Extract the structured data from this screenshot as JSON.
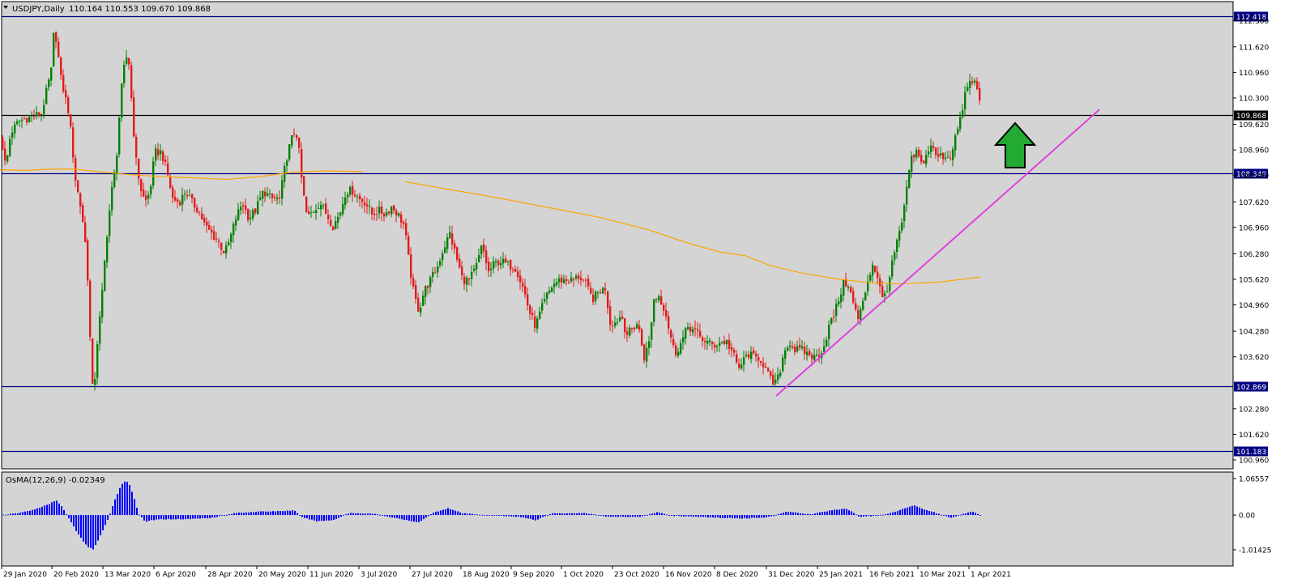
{
  "header": {
    "symbol": "USDJPY,Daily",
    "ohlc": "110.164 110.553 109.670 109.868"
  },
  "indicator": {
    "label": "OsMA(12,26,9) -0.02349",
    "value": -0.02349,
    "ticks": [
      "1.06557",
      "0.00",
      "-1.01425"
    ],
    "tick_values": [
      1.06557,
      0,
      -1.01425
    ]
  },
  "colors": {
    "background": "#d4d4d4",
    "bull": "#008000",
    "bear": "#e31a1a",
    "ma": "#ffa500",
    "trendline": "#e040e0",
    "level_line": "#000080",
    "osma": "#0000ff",
    "arrow": "#22aa33"
  },
  "chart_data": {
    "type": "candlestick",
    "symbol": "USDJPY",
    "timeframe": "Daily",
    "ylim": [
      100.96,
      112.41
    ],
    "y_ticks": [
      "112.300",
      "111.620",
      "110.960",
      "110.300",
      "109.620",
      "108.960",
      "108.300",
      "107.620",
      "106.960",
      "106.280",
      "105.620",
      "104.960",
      "104.280",
      "103.620",
      "102.280",
      "101.620",
      "100.960"
    ],
    "y_tick_values": [
      112.3,
      111.62,
      110.96,
      110.3,
      109.62,
      108.96,
      108.3,
      107.62,
      106.96,
      106.28,
      105.62,
      104.96,
      104.28,
      103.62,
      102.28,
      101.62,
      100.96
    ],
    "x_ticks": [
      "29 Jan 2020",
      "20 Feb 2020",
      "13 Mar 2020",
      "6 Apr 2020",
      "28 Apr 2020",
      "20 May 2020",
      "11 Jun 2020",
      "3 Jul 2020",
      "27 Jul 2020",
      "18 Aug 2020",
      "9 Sep 2020",
      "1 Oct 2020",
      "23 Oct 2020",
      "16 Nov 2020",
      "8 Dec 2020",
      "31 Dec 2020",
      "25 Jan 2021",
      "16 Feb 2021",
      "10 Mar 2021",
      "1 Apr 2021"
    ],
    "horizontal_levels": [
      {
        "label": "112.418",
        "value": 112.418,
        "color": "#000080"
      },
      {
        "label": "109.868",
        "value": 109.868,
        "color": "#000000"
      },
      {
        "label": "108.349",
        "value": 108.349,
        "color": "#000080"
      },
      {
        "label": "102.869",
        "value": 102.869,
        "color": "#000080"
      },
      {
        "label": "101.183",
        "value": 101.183,
        "color": "#000080"
      }
    ],
    "close_path": [
      [
        0,
        109.3
      ],
      [
        6,
        108.5
      ],
      [
        12,
        109.4
      ],
      [
        22,
        109.7
      ],
      [
        35,
        109.8
      ],
      [
        50,
        109.9
      ],
      [
        62,
        111.0
      ],
      [
        66,
        112.2
      ],
      [
        74,
        110.8
      ],
      [
        84,
        109.9
      ],
      [
        92,
        108.2
      ],
      [
        100,
        107.3
      ],
      [
        106,
        106.2
      ],
      [
        110,
        104.1
      ],
      [
        114,
        102.4
      ],
      [
        118,
        103.8
      ],
      [
        124,
        105.0
      ],
      [
        130,
        106.6
      ],
      [
        136,
        107.8
      ],
      [
        142,
        108.6
      ],
      [
        148,
        110.4
      ],
      [
        154,
        111.4
      ],
      [
        158,
        111.2
      ],
      [
        162,
        110.0
      ],
      [
        166,
        108.8
      ],
      [
        172,
        108.0
      ],
      [
        178,
        107.6
      ],
      [
        184,
        107.9
      ],
      [
        190,
        108.9
      ],
      [
        198,
        108.9
      ],
      [
        205,
        108.4
      ],
      [
        212,
        107.7
      ],
      [
        220,
        107.6
      ],
      [
        228,
        107.9
      ],
      [
        236,
        107.6
      ],
      [
        244,
        107.4
      ],
      [
        252,
        107.0
      ],
      [
        260,
        106.8
      ],
      [
        268,
        106.6
      ],
      [
        276,
        106.3
      ],
      [
        282,
        106.6
      ],
      [
        290,
        107.2
      ],
      [
        298,
        107.6
      ],
      [
        306,
        107.2
      ],
      [
        314,
        107.4
      ],
      [
        324,
        107.9
      ],
      [
        334,
        107.7
      ],
      [
        344,
        107.7
      ],
      [
        352,
        108.7
      ],
      [
        358,
        109.2
      ],
      [
        364,
        109.5
      ],
      [
        368,
        108.9
      ],
      [
        372,
        108.0
      ],
      [
        378,
        107.2
      ],
      [
        386,
        107.4
      ],
      [
        394,
        107.6
      ],
      [
        402,
        107.3
      ],
      [
        410,
        107.0
      ],
      [
        418,
        107.3
      ],
      [
        426,
        107.9
      ],
      [
        434,
        107.9
      ],
      [
        442,
        107.7
      ],
      [
        450,
        107.6
      ],
      [
        458,
        107.3
      ],
      [
        466,
        107.4
      ],
      [
        474,
        107.3
      ],
      [
        482,
        107.5
      ],
      [
        490,
        107.3
      ],
      [
        498,
        107.0
      ],
      [
        504,
        106.0
      ],
      [
        510,
        105.2
      ],
      [
        516,
        104.8
      ],
      [
        522,
        105.3
      ],
      [
        530,
        105.6
      ],
      [
        538,
        105.9
      ],
      [
        546,
        106.4
      ],
      [
        554,
        106.8
      ],
      [
        562,
        106.2
      ],
      [
        570,
        105.6
      ],
      [
        578,
        105.6
      ],
      [
        586,
        105.9
      ],
      [
        594,
        106.5
      ],
      [
        602,
        105.8
      ],
      [
        608,
        106.0
      ],
      [
        616,
        106.1
      ],
      [
        626,
        106.0
      ],
      [
        636,
        105.9
      ],
      [
        646,
        105.3
      ],
      [
        652,
        104.8
      ],
      [
        660,
        104.4
      ],
      [
        666,
        104.8
      ],
      [
        674,
        105.2
      ],
      [
        682,
        105.5
      ],
      [
        690,
        105.6
      ],
      [
        698,
        105.6
      ],
      [
        706,
        105.6
      ],
      [
        714,
        105.7
      ],
      [
        722,
        105.5
      ],
      [
        730,
        105.1
      ],
      [
        738,
        105.3
      ],
      [
        746,
        105.4
      ],
      [
        752,
        104.5
      ],
      [
        758,
        104.5
      ],
      [
        766,
        104.7
      ],
      [
        772,
        104.2
      ],
      [
        778,
        104.3
      ],
      [
        786,
        104.5
      ],
      [
        794,
        103.6
      ],
      [
        800,
        104.0
      ],
      [
        806,
        105.1
      ],
      [
        812,
        105.2
      ],
      [
        820,
        104.8
      ],
      [
        826,
        104.2
      ],
      [
        832,
        103.7
      ],
      [
        840,
        104.0
      ],
      [
        848,
        104.4
      ],
      [
        856,
        104.3
      ],
      [
        864,
        104.1
      ],
      [
        872,
        104.0
      ],
      [
        880,
        103.9
      ],
      [
        888,
        104.0
      ],
      [
        896,
        104.0
      ],
      [
        904,
        103.7
      ],
      [
        910,
        103.3
      ],
      [
        916,
        103.5
      ],
      [
        922,
        103.7
      ],
      [
        930,
        103.6
      ],
      [
        936,
        103.6
      ],
      [
        942,
        103.4
      ],
      [
        948,
        103.1
      ],
      [
        954,
        102.9
      ],
      [
        960,
        103.1
      ],
      [
        966,
        103.7
      ],
      [
        972,
        104.0
      ],
      [
        980,
        103.8
      ],
      [
        988,
        103.8
      ],
      [
        996,
        103.7
      ],
      [
        1004,
        103.6
      ],
      [
        1010,
        103.7
      ],
      [
        1016,
        103.9
      ],
      [
        1022,
        104.4
      ],
      [
        1028,
        104.7
      ],
      [
        1034,
        105.1
      ],
      [
        1040,
        105.5
      ],
      [
        1046,
        105.5
      ],
      [
        1052,
        105.0
      ],
      [
        1058,
        104.6
      ],
      [
        1064,
        105.0
      ],
      [
        1070,
        105.6
      ],
      [
        1076,
        106.0
      ],
      [
        1082,
        105.7
      ],
      [
        1088,
        105.1
      ],
      [
        1094,
        105.4
      ],
      [
        1100,
        106.0
      ],
      [
        1106,
        106.6
      ],
      [
        1112,
        107.0
      ],
      [
        1118,
        108.0
      ],
      [
        1124,
        108.7
      ],
      [
        1130,
        108.9
      ],
      [
        1136,
        108.6
      ],
      [
        1142,
        108.8
      ],
      [
        1148,
        109.1
      ],
      [
        1154,
        108.8
      ],
      [
        1160,
        108.8
      ],
      [
        1166,
        108.8
      ],
      [
        1172,
        108.8
      ],
      [
        1178,
        109.3
      ],
      [
        1184,
        109.7
      ],
      [
        1190,
        110.4
      ],
      [
        1196,
        110.7
      ],
      [
        1202,
        110.7
      ],
      [
        1206,
        110.5
      ],
      [
        1210,
        109.868
      ]
    ],
    "ma_path": [
      [
        0,
        108.45
      ],
      [
        30,
        108.43
      ],
      [
        60,
        108.46
      ],
      [
        90,
        108.47
      ],
      [
        120,
        108.4
      ],
      [
        160,
        108.32
      ],
      [
        200,
        108.27
      ],
      [
        240,
        108.24
      ],
      [
        280,
        108.2
      ],
      [
        320,
        108.27
      ],
      [
        360,
        108.38
      ],
      [
        400,
        108.42
      ],
      [
        448,
        108.4
      ],
      [
        500,
        108.14
      ],
      [
        560,
        107.92
      ],
      [
        620,
        107.7
      ],
      [
        680,
        107.46
      ],
      [
        740,
        107.22
      ],
      [
        800,
        106.9
      ],
      [
        850,
        106.55
      ],
      [
        890,
        106.32
      ],
      [
        920,
        106.23
      ],
      [
        950,
        105.98
      ],
      [
        990,
        105.78
      ],
      [
        1030,
        105.64
      ],
      [
        1070,
        105.54
      ],
      [
        1110,
        105.5
      ],
      [
        1160,
        105.55
      ],
      [
        1210,
        105.68
      ]
    ],
    "trendline": {
      "from": [
        958,
        102.61
      ],
      "to": [
        1357,
        110.0
      ]
    },
    "osma_path": [
      [
        0,
        0.0
      ],
      [
        20,
        0.05
      ],
      [
        40,
        0.15
      ],
      [
        60,
        0.32
      ],
      [
        68,
        0.44
      ],
      [
        74,
        0.3
      ],
      [
        82,
        -0.02
      ],
      [
        92,
        -0.42
      ],
      [
        102,
        -0.78
      ],
      [
        108,
        -0.93
      ],
      [
        114,
        -1.0
      ],
      [
        120,
        -0.75
      ],
      [
        128,
        -0.35
      ],
      [
        134,
        -0.02
      ],
      [
        140,
        0.4
      ],
      [
        148,
        0.85
      ],
      [
        154,
        1.0
      ],
      [
        158,
        0.95
      ],
      [
        164,
        0.55
      ],
      [
        170,
        0.05
      ],
      [
        178,
        -0.2
      ],
      [
        186,
        -0.15
      ],
      [
        200,
        -0.12
      ],
      [
        230,
        -0.12
      ],
      [
        260,
        -0.08
      ],
      [
        290,
        0.06
      ],
      [
        320,
        0.1
      ],
      [
        350,
        0.12
      ],
      [
        362,
        0.14
      ],
      [
        370,
        -0.05
      ],
      [
        390,
        -0.18
      ],
      [
        410,
        -0.15
      ],
      [
        430,
        0.06
      ],
      [
        460,
        0.04
      ],
      [
        490,
        -0.1
      ],
      [
        515,
        -0.22
      ],
      [
        535,
        0.08
      ],
      [
        552,
        0.2
      ],
      [
        570,
        0.05
      ],
      [
        600,
        0.0
      ],
      [
        640,
        -0.05
      ],
      [
        660,
        -0.15
      ],
      [
        680,
        0.05
      ],
      [
        720,
        0.06
      ],
      [
        750,
        -0.05
      ],
      [
        790,
        -0.05
      ],
      [
        810,
        0.08
      ],
      [
        830,
        -0.02
      ],
      [
        860,
        -0.05
      ],
      [
        890,
        -0.08
      ],
      [
        920,
        -0.1
      ],
      [
        950,
        -0.05
      ],
      [
        970,
        0.1
      ],
      [
        1000,
        0.02
      ],
      [
        1030,
        0.16
      ],
      [
        1045,
        0.18
      ],
      [
        1060,
        -0.05
      ],
      [
        1080,
        -0.02
      ],
      [
        1100,
        0.06
      ],
      [
        1118,
        0.22
      ],
      [
        1128,
        0.28
      ],
      [
        1142,
        0.15
      ],
      [
        1160,
        0.02
      ],
      [
        1172,
        -0.08
      ],
      [
        1190,
        0.05
      ],
      [
        1200,
        0.1
      ],
      [
        1210,
        -0.02
      ]
    ]
  },
  "annotations": {
    "arrow": {
      "direction": "up",
      "color": "#22aa33"
    }
  }
}
